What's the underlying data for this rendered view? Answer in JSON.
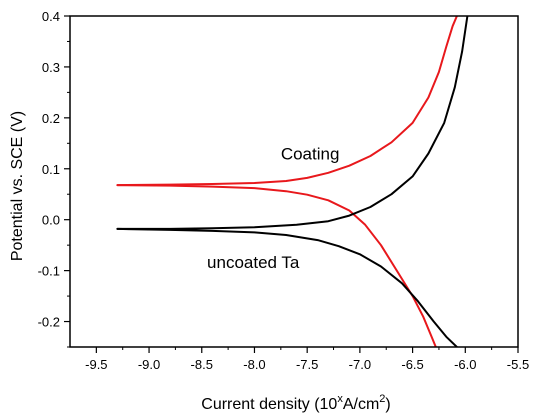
{
  "chart_data": {
    "type": "line",
    "xlabel_prefix": "Current density  (10",
    "xlabel_sup1": "x",
    "xlabel_mid": "A/cm",
    "xlabel_sup2": "2",
    "xlabel_suffix": ")",
    "ylabel": "Potential vs. SCE (V)",
    "xlim": [
      -9.75,
      -5.5
    ],
    "ylim": [
      -0.25,
      0.4
    ],
    "xticks": [
      -9.5,
      -9.0,
      -8.5,
      -8.0,
      -7.5,
      -7.0,
      -6.5,
      -6.0,
      -5.5
    ],
    "xtick_labels": [
      "-9.5",
      "-9.0",
      "-8.5",
      "-8.0",
      "-7.5",
      "-7.0",
      "-6.5",
      "-6.0",
      "-5.5"
    ],
    "yticks": [
      -0.2,
      -0.1,
      0.0,
      0.1,
      0.2,
      0.3,
      0.4
    ],
    "ytick_labels": [
      "-0.2",
      "-0.1",
      "0.0",
      "0.1",
      "0.2",
      "0.3",
      "0.4"
    ],
    "grid": false,
    "annotations": [
      {
        "text": "Coating",
        "x": -7.75,
        "y": 0.118
      },
      {
        "text": "uncoated Ta",
        "x": -8.45,
        "y": -0.095
      }
    ],
    "series": [
      {
        "key": "coating",
        "color": "#e8181c",
        "anodic": [
          [
            -9.3,
            0.068
          ],
          [
            -8.8,
            0.069
          ],
          [
            -8.4,
            0.07
          ],
          [
            -8.0,
            0.072
          ],
          [
            -7.7,
            0.076
          ],
          [
            -7.5,
            0.082
          ],
          [
            -7.3,
            0.092
          ],
          [
            -7.1,
            0.106
          ],
          [
            -6.9,
            0.125
          ],
          [
            -6.7,
            0.152
          ],
          [
            -6.5,
            0.19
          ],
          [
            -6.35,
            0.24
          ],
          [
            -6.25,
            0.29
          ],
          [
            -6.18,
            0.34
          ],
          [
            -6.12,
            0.38
          ],
          [
            -6.08,
            0.4
          ]
        ],
        "cathodic": [
          [
            -9.3,
            0.068
          ],
          [
            -8.8,
            0.067
          ],
          [
            -8.4,
            0.065
          ],
          [
            -8.0,
            0.062
          ],
          [
            -7.7,
            0.056
          ],
          [
            -7.5,
            0.049
          ],
          [
            -7.3,
            0.038
          ],
          [
            -7.1,
            0.018
          ],
          [
            -6.95,
            -0.01
          ],
          [
            -6.8,
            -0.05
          ],
          [
            -6.65,
            -0.1
          ],
          [
            -6.5,
            -0.15
          ],
          [
            -6.4,
            -0.19
          ],
          [
            -6.32,
            -0.23
          ],
          [
            -6.28,
            -0.25
          ]
        ]
      },
      {
        "key": "uncoated-ta",
        "color": "#000000",
        "anodic": [
          [
            -9.3,
            -0.018
          ],
          [
            -8.8,
            -0.018
          ],
          [
            -8.4,
            -0.017
          ],
          [
            -8.0,
            -0.015
          ],
          [
            -7.6,
            -0.01
          ],
          [
            -7.3,
            -0.003
          ],
          [
            -7.1,
            0.008
          ],
          [
            -6.9,
            0.025
          ],
          [
            -6.7,
            0.05
          ],
          [
            -6.5,
            0.085
          ],
          [
            -6.35,
            0.13
          ],
          [
            -6.2,
            0.19
          ],
          [
            -6.1,
            0.26
          ],
          [
            -6.03,
            0.33
          ],
          [
            -5.98,
            0.4
          ]
        ],
        "cathodic": [
          [
            -9.3,
            -0.018
          ],
          [
            -8.8,
            -0.02
          ],
          [
            -8.4,
            -0.022
          ],
          [
            -8.0,
            -0.025
          ],
          [
            -7.7,
            -0.03
          ],
          [
            -7.4,
            -0.04
          ],
          [
            -7.2,
            -0.052
          ],
          [
            -7.0,
            -0.068
          ],
          [
            -6.8,
            -0.092
          ],
          [
            -6.6,
            -0.125
          ],
          [
            -6.45,
            -0.16
          ],
          [
            -6.3,
            -0.2
          ],
          [
            -6.18,
            -0.23
          ],
          [
            -6.08,
            -0.25
          ]
        ]
      }
    ]
  }
}
